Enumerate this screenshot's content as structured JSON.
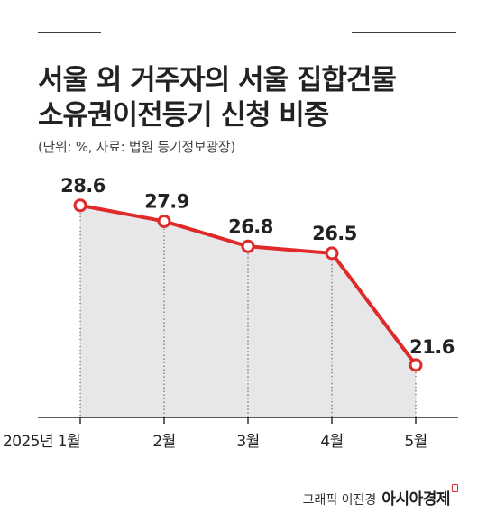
{
  "title_lines": [
    "서울 외 거주자의 서울 집합건물",
    "소유권이전등기 신청 비중"
  ],
  "subtitle": "(단위: %, 자료: 법원 등기정보광장)",
  "credit": {
    "author": "그래픽 이진경",
    "brand": "아시아경제"
  },
  "colors": {
    "line": "#e02a2a",
    "area": "#e7e7e9",
    "marker_fill": "#ffffff",
    "axis": "#222222"
  },
  "chart_data": {
    "type": "area",
    "title": "서울 외 거주자의 서울 집합건물 소유권이전등기 신청 비중",
    "categories": [
      "2025년 1월",
      "2월",
      "3월",
      "4월",
      "5월"
    ],
    "values": [
      28.6,
      27.9,
      26.8,
      26.5,
      21.6
    ],
    "data_labels": [
      "28.6",
      "27.9",
      "26.8",
      "26.5",
      "21.6"
    ],
    "unit": "%",
    "xlabel": "",
    "ylabel": "",
    "ylim": [
      19.3,
      29.5
    ],
    "grid": false,
    "markers": "hollow-circle",
    "drop_lines": true
  }
}
